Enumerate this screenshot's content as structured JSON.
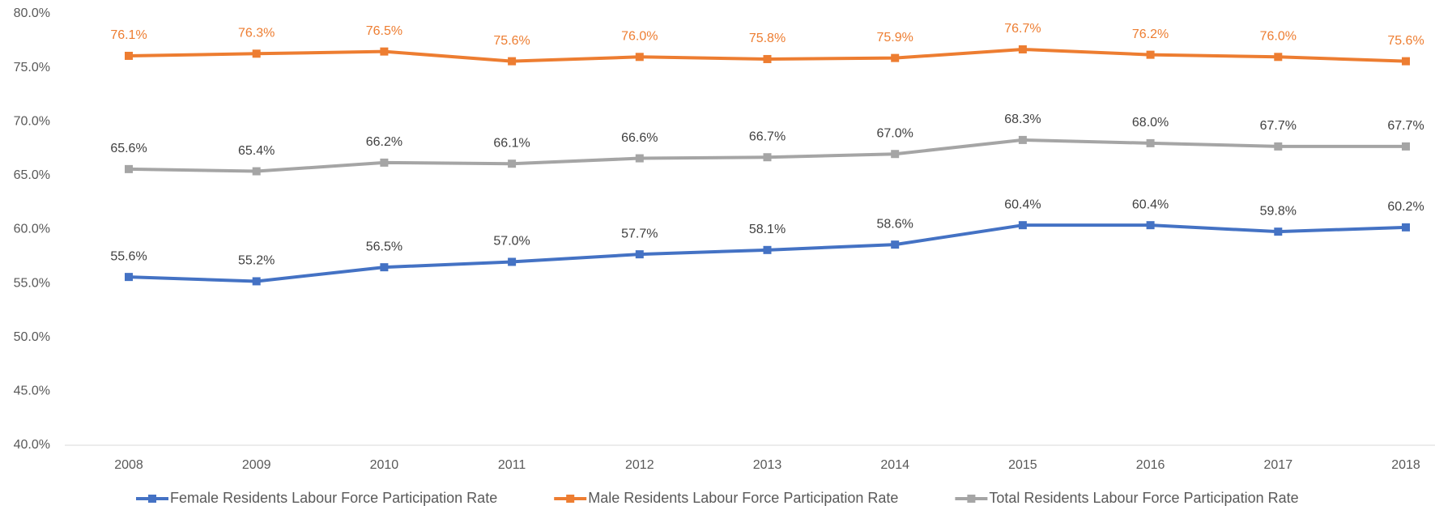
{
  "chart_data": {
    "type": "line",
    "categories": [
      "2008",
      "2009",
      "2010",
      "2011",
      "2012",
      "2013",
      "2014",
      "2015",
      "2016",
      "2017",
      "2018"
    ],
    "series": [
      {
        "name": "Female Residents Labour Force Participation Rate",
        "color": "#4472c4",
        "label_color": "#404040",
        "values": [
          55.6,
          55.2,
          56.5,
          57.0,
          57.7,
          58.1,
          58.6,
          60.4,
          60.4,
          59.8,
          60.2
        ],
        "value_labels": [
          "55.6%",
          "55.2%",
          "56.5%",
          "57.0%",
          "57.7%",
          "58.1%",
          "58.6%",
          "60.4%",
          "60.4%",
          "59.8%",
          "60.2%"
        ]
      },
      {
        "name": "Male Residents Labour Force Participation Rate",
        "color": "#ed7d31",
        "label_color": "#ed7d31",
        "values": [
          76.1,
          76.3,
          76.5,
          75.6,
          76.0,
          75.8,
          75.9,
          76.7,
          76.2,
          76.0,
          75.6
        ],
        "value_labels": [
          "76.1%",
          "76.3%",
          "76.5%",
          "75.6%",
          "76.0%",
          "75.8%",
          "75.9%",
          "76.7%",
          "76.2%",
          "76.0%",
          "75.6%"
        ]
      },
      {
        "name": "Total Residents Labour Force Participation Rate",
        "color": "#a5a5a5",
        "label_color": "#404040",
        "values": [
          65.6,
          65.4,
          66.2,
          66.1,
          66.6,
          66.7,
          67.0,
          68.3,
          68.0,
          67.7,
          67.7
        ],
        "value_labels": [
          "65.6%",
          "65.4%",
          "66.2%",
          "66.1%",
          "66.6%",
          "66.7%",
          "67.0%",
          "68.3%",
          "68.0%",
          "67.7%",
          "67.7%"
        ]
      }
    ],
    "ylim": [
      40,
      80
    ],
    "yticks": [
      {
        "value": 40,
        "label": "40.0%"
      },
      {
        "value": 45,
        "label": "45.0%"
      },
      {
        "value": 50,
        "label": "50.0%"
      },
      {
        "value": 55,
        "label": "55.0%"
      },
      {
        "value": 60,
        "label": "60.0%"
      },
      {
        "value": 65,
        "label": "65.0%"
      },
      {
        "value": 70,
        "label": "70.0%"
      },
      {
        "value": 75,
        "label": "75.0%"
      },
      {
        "value": 80,
        "label": "80.0%"
      }
    ],
    "grid": false,
    "legend": "bottom"
  }
}
